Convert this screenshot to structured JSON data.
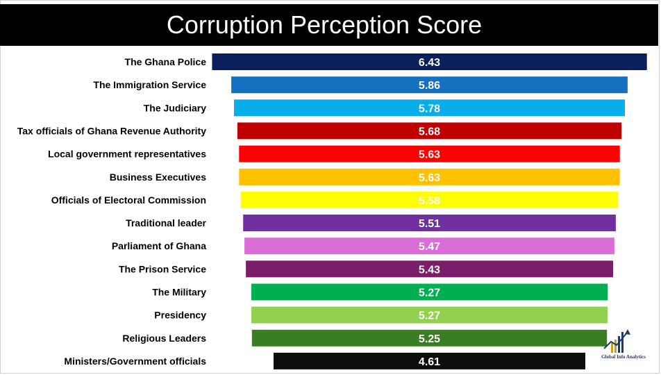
{
  "title": "Corruption Perception Score",
  "chart_data": {
    "type": "bar",
    "orientation": "horizontal",
    "title": "Corruption Perception Score",
    "categories": [
      "The Ghana Police",
      "The Immigration Service",
      "The Judiciary",
      "Tax officials of Ghana Revenue Authority",
      "Local government representatives",
      "Business Executives",
      "Officials of Electoral Commission",
      "Traditional leader",
      "Parliament of Ghana",
      "The Prison Service",
      "The Military",
      "Presidency",
      "Religious Leaders",
      "Ministers/Government officials"
    ],
    "values": [
      6.43,
      5.86,
      5.78,
      5.68,
      5.63,
      5.63,
      5.58,
      5.51,
      5.47,
      5.43,
      5.27,
      5.27,
      5.25,
      4.61
    ],
    "value_labels": [
      "6.43",
      "5.86",
      "5.78",
      "5.68",
      "5.63",
      "5.63",
      "5.58",
      "5.51",
      "5.47",
      "5.43",
      "5.27",
      "5.27",
      "5.25",
      "4.61"
    ],
    "colors": [
      "#0b1f5c",
      "#1570c1",
      "#08aeea",
      "#c00000",
      "#ff0000",
      "#ffc000",
      "#ffff00",
      "#7030a0",
      "#d96ed6",
      "#7a1e6b",
      "#00b050",
      "#92d050",
      "#3a7d22",
      "#0d0d0d"
    ],
    "bar_style": "centered funnel",
    "grid": false,
    "legend": "none"
  },
  "logo": {
    "text": "Global Info Analytics",
    "icon": "bar-chart-arrow-icon"
  }
}
